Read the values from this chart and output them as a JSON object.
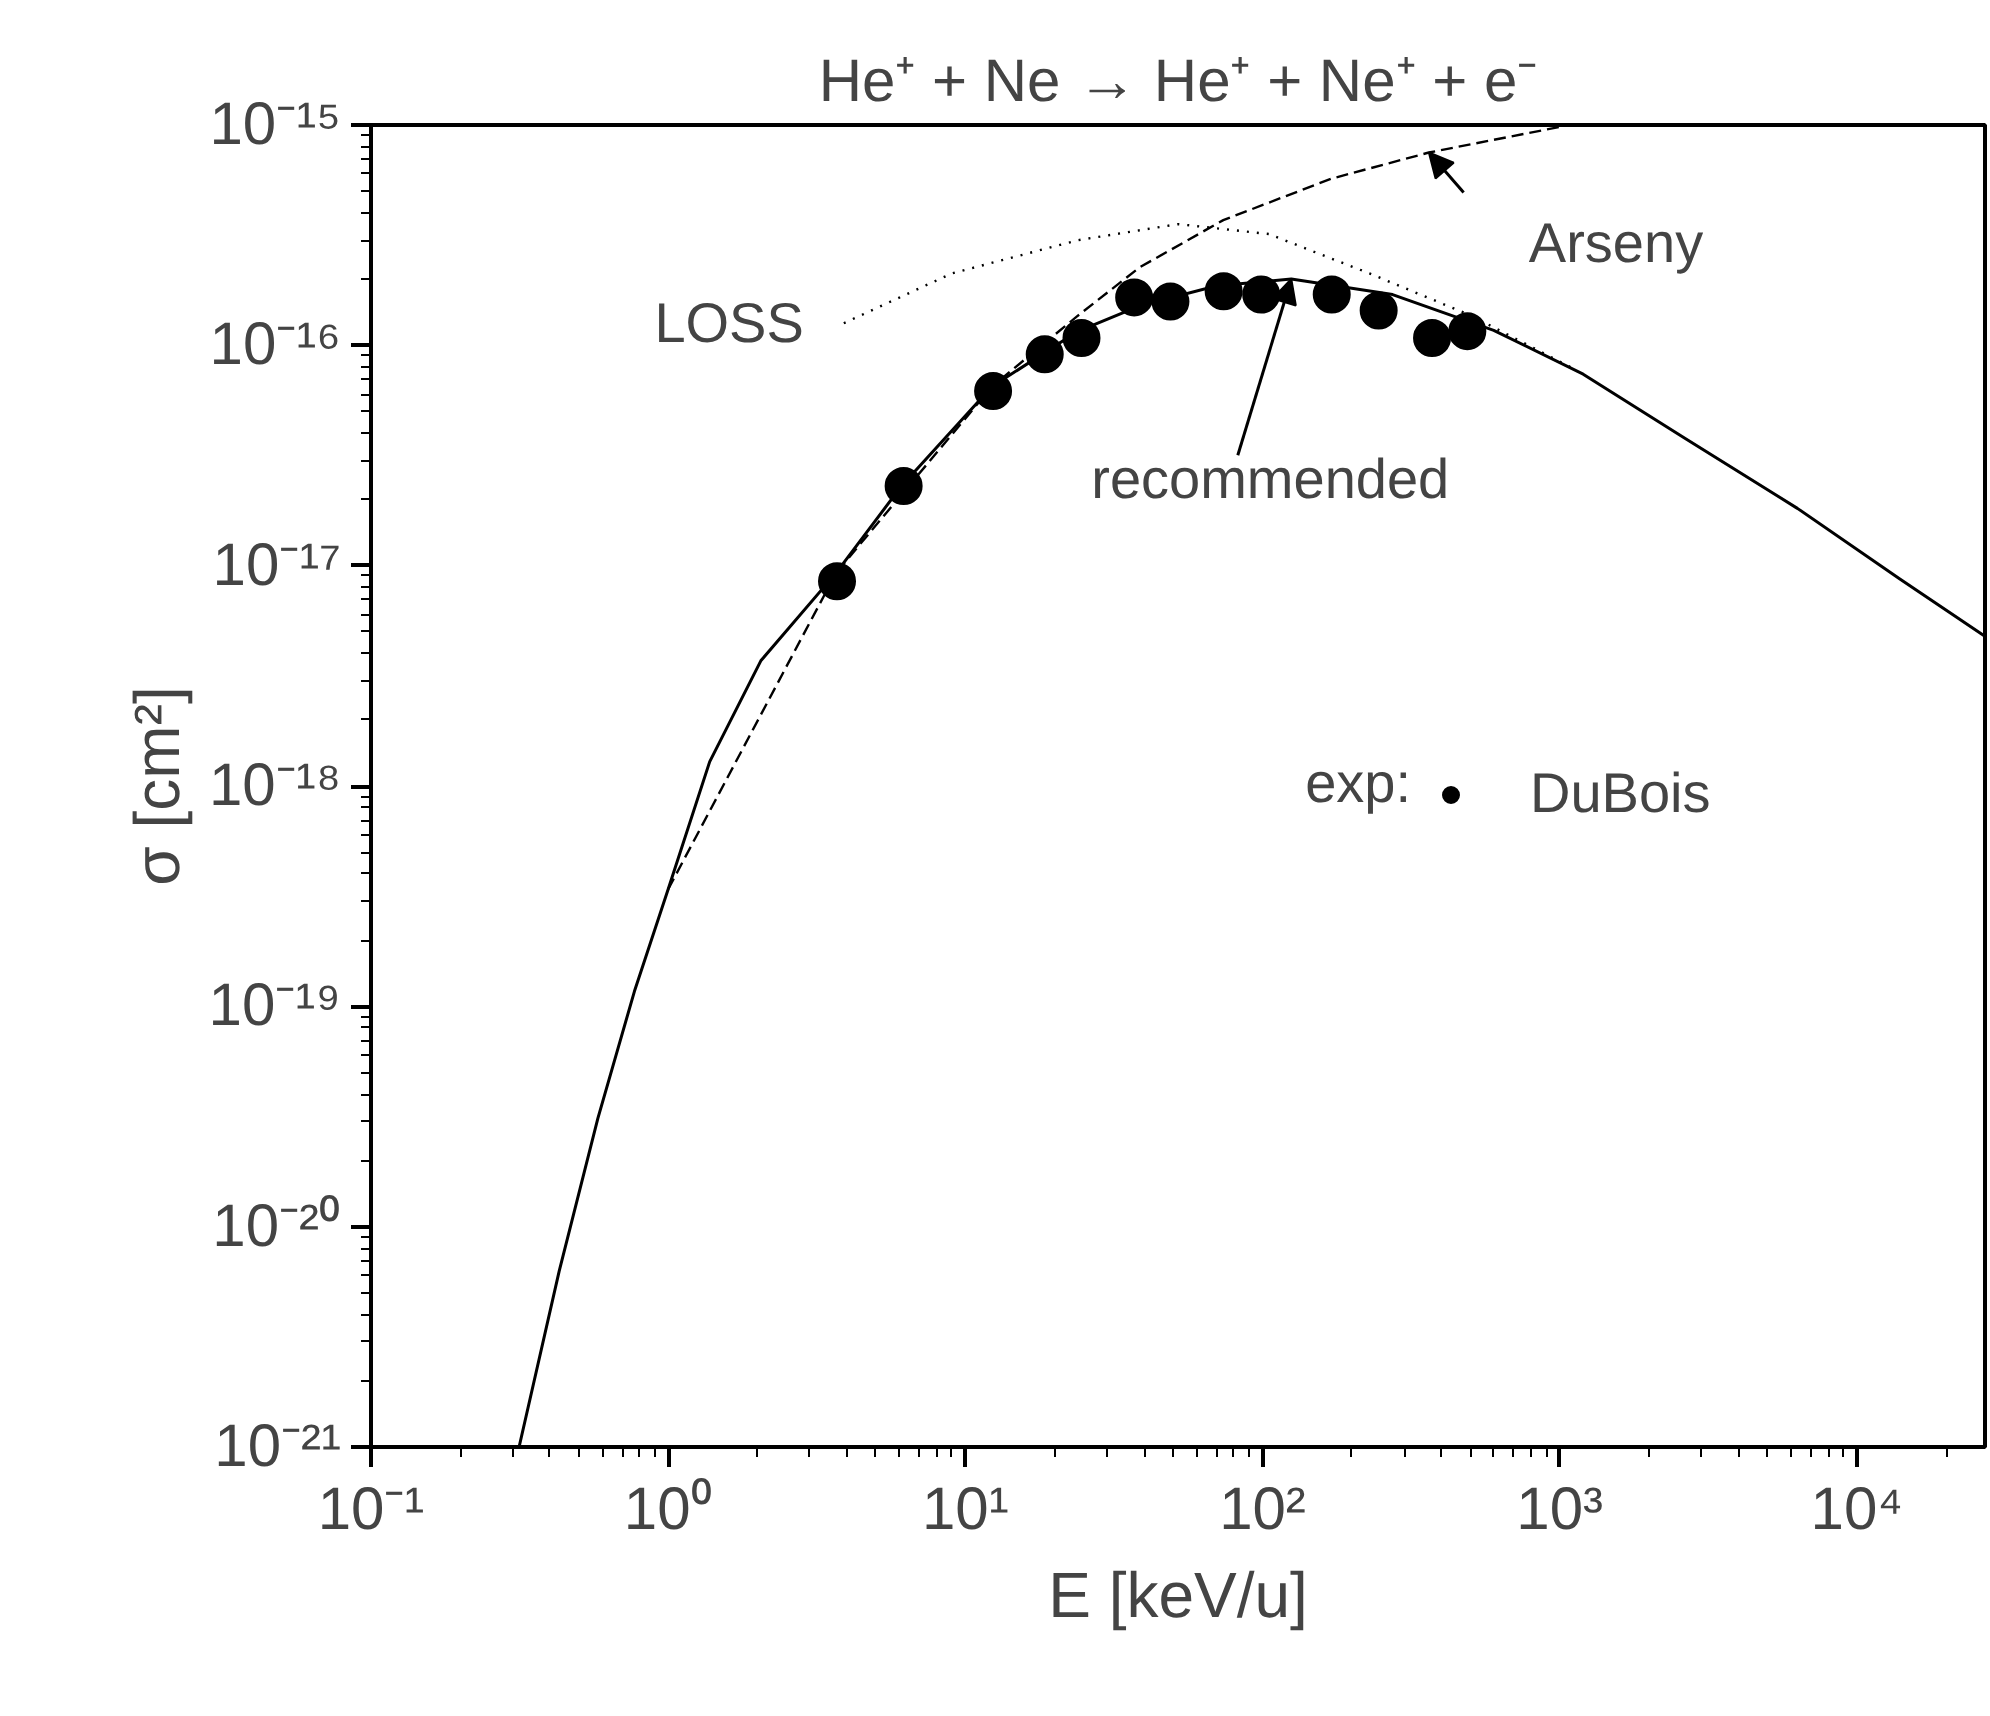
{
  "chart_data": {
    "type": "line",
    "title": "He⁺ + Ne → He⁺ + Ne⁺ + e⁻",
    "xlabel": "E [keV/u]",
    "ylabel": "σ [cm²]",
    "log": "xy",
    "xlim": [
      0.1,
      27000
    ],
    "ylim": [
      1e-21,
      1e-15
    ],
    "xticks": [
      {
        "value": 0.1,
        "label": "10⁻¹"
      },
      {
        "value": 1,
        "label": "10⁰"
      },
      {
        "value": 10,
        "label": "10¹"
      },
      {
        "value": 100,
        "label": "10²"
      },
      {
        "value": 1000,
        "label": "10³"
      },
      {
        "value": 10000,
        "label": "10⁴"
      }
    ],
    "yticks": [
      {
        "value": 1e-21,
        "label": "10⁻²¹"
      },
      {
        "value": 1e-20,
        "label": "10⁻²⁰"
      },
      {
        "value": 1e-19,
        "label": "10⁻¹⁹"
      },
      {
        "value": 1e-18,
        "label": "10⁻¹⁸"
      },
      {
        "value": 1e-17,
        "label": "10⁻¹⁷"
      },
      {
        "value": 1e-16,
        "label": "10⁻¹⁶"
      },
      {
        "value": 1e-15,
        "label": "10⁻¹⁵"
      }
    ],
    "grid": false,
    "legend": "center",
    "series": [
      {
        "line_style": "solid",
        "color": "#000000",
        "x": [
          0.315,
          0.43,
          0.58,
          0.77,
          1.0,
          1.38,
          2.05,
          3.68,
          6.1,
          12.3,
          23.7,
          38.6,
          69.7,
          125,
          274,
          600,
          1200,
          2630,
          6310,
          13960,
          26900
        ],
        "values": [
          1e-21,
          6.3e-21,
          3.1e-20,
          1.17e-19,
          3.4e-19,
          1.29e-18,
          3.7e-18,
          9.3e-18,
          2.3e-17,
          6.5e-17,
          1.15e-16,
          1.51e-16,
          1.86e-16,
          2e-16,
          1.7e-16,
          1.17e-16,
          7.4e-17,
          3.8e-17,
          1.82e-17,
          8.7e-18,
          4.8e-18
        ]
      },
      {
        "line_style": "dashed",
        "color": "#000000",
        "x": [
          1.0,
          3.68,
          12.3,
          23.7,
          38.6,
          73.8,
          170,
          363,
          1000
        ],
        "values": [
          3.4e-19,
          9.3e-18,
          6.5e-17,
          1.35e-16,
          2.26e-16,
          3.7e-16,
          5.7e-16,
          7.5e-16,
          9.8e-16
        ]
      },
      {
        "line_style": "dotted",
        "color": "#000000",
        "x": [
          3.9,
          9.0,
          23.9,
          52,
          105,
          229,
          500,
          1100
        ],
        "values": [
          1.26e-16,
          2.12e-16,
          3e-16,
          3.55e-16,
          3.2e-16,
          2.12e-16,
          1.37e-16,
          7.9e-17
        ]
      },
      {
        "type": "scatter",
        "name": "DuBois",
        "marker": "circle",
        "color": "#000000",
        "x": [
          3.7,
          6.2,
          12.4,
          18.5,
          24.6,
          37,
          49,
          74,
          99,
          171,
          246,
          372,
          489
        ],
        "values": [
          8.5e-18,
          2.3e-17,
          6.2e-17,
          9.1e-17,
          1.08e-16,
          1.65e-16,
          1.58e-16,
          1.76e-16,
          1.7e-16,
          1.7e-16,
          1.44e-16,
          1.08e-16,
          1.16e-16
        ]
      }
    ],
    "annotations": [
      {
        "text": "LOSS",
        "x": 3.9,
        "y": 1.26e-16
      },
      {
        "text": "Arseny",
        "x": 363,
        "y": 7.5e-16
      },
      {
        "text": "recommended",
        "x": 125,
        "y": 2e-16
      },
      "exp:"
    ]
  }
}
